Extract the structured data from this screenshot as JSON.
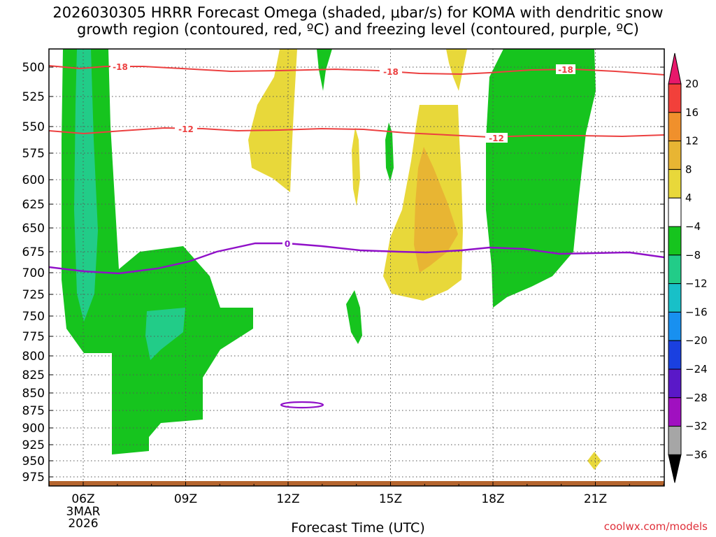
{
  "chart_data": {
    "type": "time-height",
    "title_line1": "2026030305 HRRR Forecast Omega (shaded, μbar/s) for KOMA with dendritic snow",
    "title_line2": "growth region (contoured, red, ºC) and freezing level (contoured, purple, ºC)",
    "xlabel": "Forecast Time (UTC)",
    "x_ticks": [
      "06Z",
      "09Z",
      "12Z",
      "15Z",
      "18Z",
      "21Z"
    ],
    "x_date_lines": [
      "3MAR",
      "2026"
    ],
    "y_ticks": [
      500,
      525,
      550,
      575,
      600,
      625,
      650,
      675,
      700,
      725,
      750,
      775,
      800,
      825,
      850,
      875,
      900,
      925,
      950,
      975
    ],
    "ylim": [
      490,
      990
    ],
    "colorbar": {
      "labels": [
        "20",
        "16",
        "12",
        "8",
        "4",
        "−4",
        "−8",
        "−12",
        "−16",
        "−20",
        "−24",
        "−28",
        "−32",
        "−36"
      ],
      "colors": [
        "#e8186b",
        "#f2403a",
        "#f0902c",
        "#e8b533",
        "#e8d83a",
        "#ffffff",
        "#16c41e",
        "#22cc88",
        "#18c0c8",
        "#1890f0",
        "#1a40e0",
        "#5a18c8",
        "#a010c0",
        "#a6a6a6",
        "#000000"
      ]
    },
    "contours": {
      "dgz_labels": [
        "-18",
        "-18",
        "-18",
        "-12",
        "-12"
      ],
      "freezing_label": "0"
    },
    "fills": {
      "green": "#16c41e",
      "teal": "#22cc88",
      "yellow": "#e8d83a",
      "orange": "#e8b533",
      "red_line": "#ec4040",
      "purple_line": "#9010c8",
      "ground": "#b5652e"
    }
  },
  "footer": {
    "credit": "coolwx.com/models"
  }
}
